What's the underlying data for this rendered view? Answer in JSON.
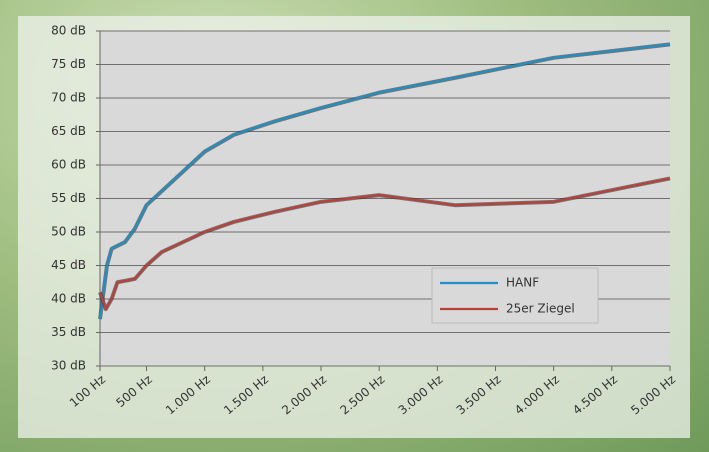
{
  "chart_data": {
    "type": "line",
    "xlim": [
      100,
      5000
    ],
    "xticks": [
      {
        "value": 100,
        "label": "100 Hz"
      },
      {
        "value": 500,
        "label": "500 Hz"
      },
      {
        "value": 1000,
        "label": "1.000 Hz"
      },
      {
        "value": 1500,
        "label": "1.500 Hz"
      },
      {
        "value": 2000,
        "label": "2.000 Hz"
      },
      {
        "value": 2500,
        "label": "2.500 Hz"
      },
      {
        "value": 3000,
        "label": "3.000 Hz"
      },
      {
        "value": 3500,
        "label": "3.500 Hz"
      },
      {
        "value": 4000,
        "label": "4.000 Hz"
      },
      {
        "value": 4500,
        "label": "4.500 Hz"
      },
      {
        "value": 5000,
        "label": "5.000 Hz"
      }
    ],
    "ylim": [
      30,
      80
    ],
    "yticks": [
      {
        "value": 30,
        "label": "30 dB"
      },
      {
        "value": 35,
        "label": "35 dB"
      },
      {
        "value": 40,
        "label": "40 dB"
      },
      {
        "value": 45,
        "label": "45 dB"
      },
      {
        "value": 50,
        "label": "50 dB"
      },
      {
        "value": 55,
        "label": "55 dB"
      },
      {
        "value": 60,
        "label": "60 dB"
      },
      {
        "value": 65,
        "label": "65 dB"
      },
      {
        "value": 70,
        "label": "70 dB"
      },
      {
        "value": 75,
        "label": "75 dB"
      },
      {
        "value": 80,
        "label": "80 dB"
      }
    ],
    "grid": true,
    "legend": "lower-right",
    "series": [
      {
        "name": "HANF",
        "color": "#1f8fc4",
        "x": [
          100,
          160,
          200,
          315,
          400,
          500,
          1000,
          1250,
          1600,
          2000,
          2500,
          3150,
          4000,
          5000
        ],
        "values": [
          37,
          45,
          47.5,
          48.5,
          50.5,
          54,
          62,
          64.5,
          66.5,
          68.5,
          70.8,
          73,
          76,
          78
        ]
      },
      {
        "name": "25er Ziegel",
        "color": "#b8413a",
        "x": [
          100,
          150,
          200,
          250,
          400,
          500,
          630,
          1000,
          1250,
          1600,
          2000,
          2500,
          3150,
          4000,
          5000
        ],
        "values": [
          41,
          38.5,
          40,
          42.5,
          43,
          45,
          47,
          50,
          51.5,
          53,
          54.5,
          55.5,
          54,
          54.5,
          58
        ]
      }
    ]
  }
}
